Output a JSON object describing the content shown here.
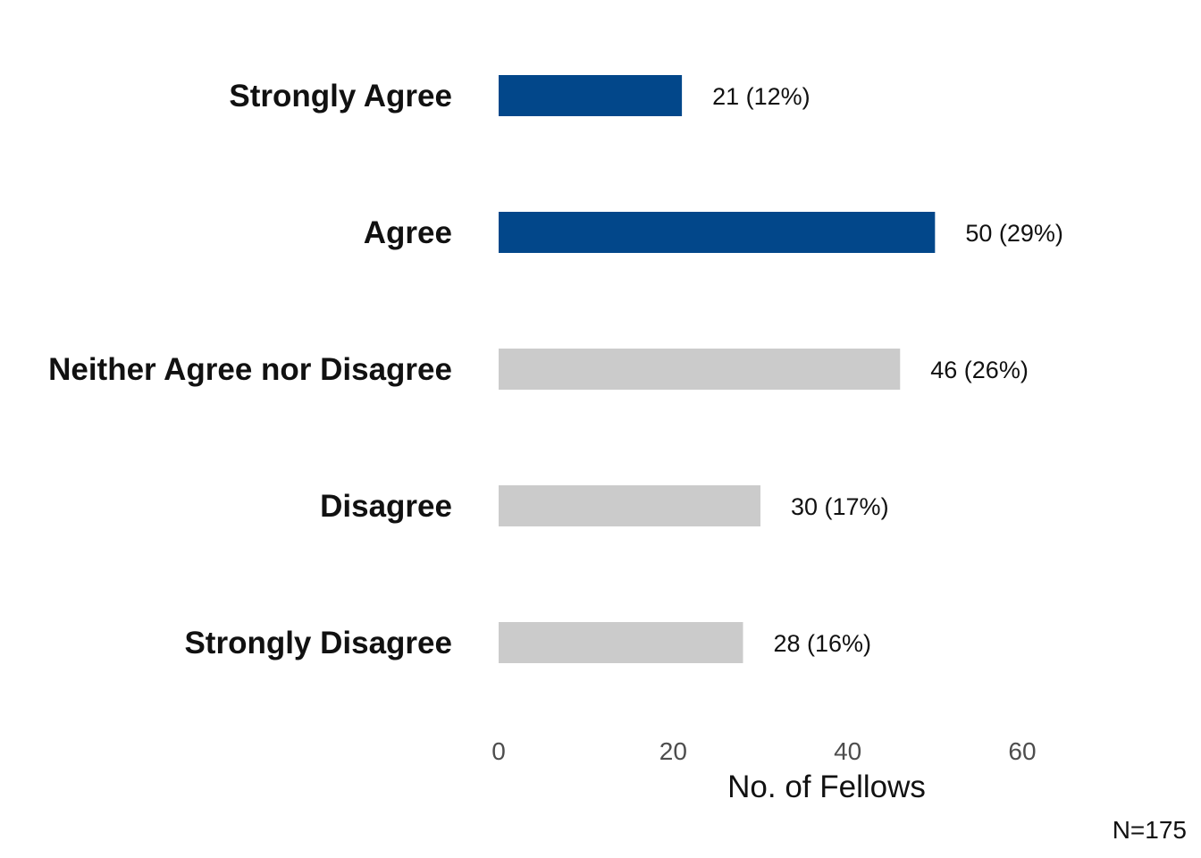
{
  "chart_data": {
    "type": "bar",
    "orientation": "horizontal",
    "categories": [
      "Strongly Agree",
      "Agree",
      "Neither Agree nor Disagree",
      "Disagree",
      "Strongly Disagree"
    ],
    "values": [
      21,
      50,
      46,
      30,
      28
    ],
    "value_labels": [
      "21 (12%)",
      "50 (29%)",
      "46 (26%)",
      "30 (17%)",
      "28 (16%)"
    ],
    "bar_colors": [
      "#02478A",
      "#02478A",
      "#CBCBCB",
      "#CBCBCB",
      "#CBCBCB"
    ],
    "xlabel": "No. of Fellows",
    "ylabel": "",
    "xlim": [
      0,
      60
    ],
    "xticks": [
      0,
      20,
      40,
      60
    ],
    "xtick_labels": [
      "0",
      "20",
      "40",
      "60"
    ],
    "grid": false,
    "note": "N=175"
  }
}
